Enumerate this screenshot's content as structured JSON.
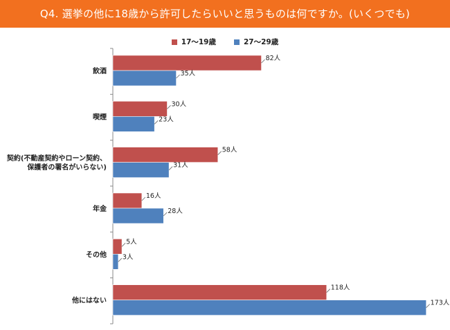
{
  "title": "Q4. 選挙の他に18歳から許可したらいいと思うものは何ですか。(いくつでも)",
  "chart_data": {
    "type": "bar",
    "orientation": "horizontal",
    "categories": [
      [
        "飲酒"
      ],
      [
        "喫煙"
      ],
      [
        "契約(不動産契約やローン契約、",
        "保護者の署名がいらない)"
      ],
      [
        "年金"
      ],
      [
        "その他"
      ],
      [
        "他にはない"
      ]
    ],
    "series": [
      {
        "name": "17〜19歳",
        "color": "#c0504d",
        "values": [
          82,
          30,
          58,
          16,
          5,
          118
        ],
        "labels": [
          "82人",
          "30人",
          "58人",
          "16人",
          "5人",
          "118人"
        ]
      },
      {
        "name": "27〜29歳",
        "color": "#4f81bd",
        "values": [
          35,
          23,
          31,
          28,
          3,
          173
        ],
        "labels": [
          "35人",
          "23人",
          "31人",
          "28人",
          "3人",
          "173人"
        ]
      }
    ],
    "xlim": [
      0,
      180
    ],
    "grid": false,
    "legend_position": "top-center"
  }
}
